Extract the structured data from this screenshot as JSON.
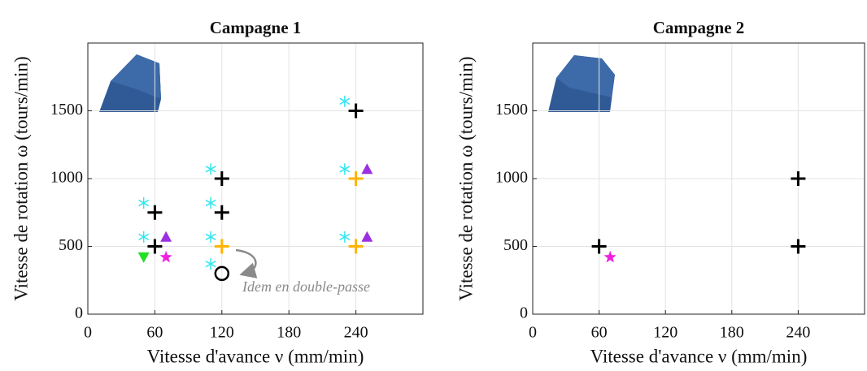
{
  "chart_data": [
    {
      "type": "scatter",
      "title": "Campagne 1",
      "x_label": "Vitesse d'avance ν (mm/min)",
      "y_label": "Vitesse de rotation ω (tours/min)",
      "xlim": [
        0,
        300
      ],
      "ylim": [
        0,
        2000
      ],
      "xticks": [
        0,
        60,
        120,
        180,
        240
      ],
      "yticks": [
        0,
        500,
        1000,
        1500
      ],
      "grid": true,
      "annotation": "Idem en double-passe",
      "series": [
        {
          "marker": "plus",
          "color": "#000000",
          "x": [
            60,
            60,
            120,
            120,
            240
          ],
          "values": [
            500,
            750,
            1000,
            750,
            1500
          ]
        },
        {
          "marker": "plus",
          "color": "#ffb300",
          "x": [
            120,
            240,
            240
          ],
          "values": [
            500,
            1000,
            500
          ]
        },
        {
          "marker": "asterisk",
          "color": "#33e6f0",
          "x": [
            50,
            50,
            110,
            110,
            110,
            110,
            230,
            230,
            230
          ],
          "values": [
            820,
            570,
            1070,
            820,
            570,
            370,
            1570,
            1070,
            570
          ]
        },
        {
          "marker": "triangle-up",
          "color": "#9b30e0",
          "x": [
            70,
            250,
            250
          ],
          "values": [
            570,
            1070,
            570
          ]
        },
        {
          "marker": "triangle-down",
          "color": "#22e022",
          "x": [
            50
          ],
          "values": [
            420
          ]
        },
        {
          "marker": "star",
          "color": "#f020e0",
          "x": [
            70
          ],
          "values": [
            420
          ]
        },
        {
          "marker": "circle",
          "color": "#000000",
          "x": [
            120
          ],
          "values": [
            300
          ]
        }
      ]
    },
    {
      "type": "scatter",
      "title": "Campagne 2",
      "x_label": "Vitesse d'avance ν (mm/min)",
      "y_label": "Vitesse de rotation ω (tours/min)",
      "xlim": [
        0,
        300
      ],
      "ylim": [
        0,
        2000
      ],
      "xticks": [
        0,
        60,
        120,
        180,
        240
      ],
      "yticks": [
        0,
        500,
        1000,
        1500
      ],
      "grid": true,
      "series": [
        {
          "marker": "plus",
          "color": "#000000",
          "x": [
            60,
            240,
            240
          ],
          "values": [
            500,
            1000,
            500
          ]
        },
        {
          "marker": "star",
          "color": "#f020e0",
          "x": [
            70
          ],
          "values": [
            420
          ]
        }
      ]
    }
  ]
}
